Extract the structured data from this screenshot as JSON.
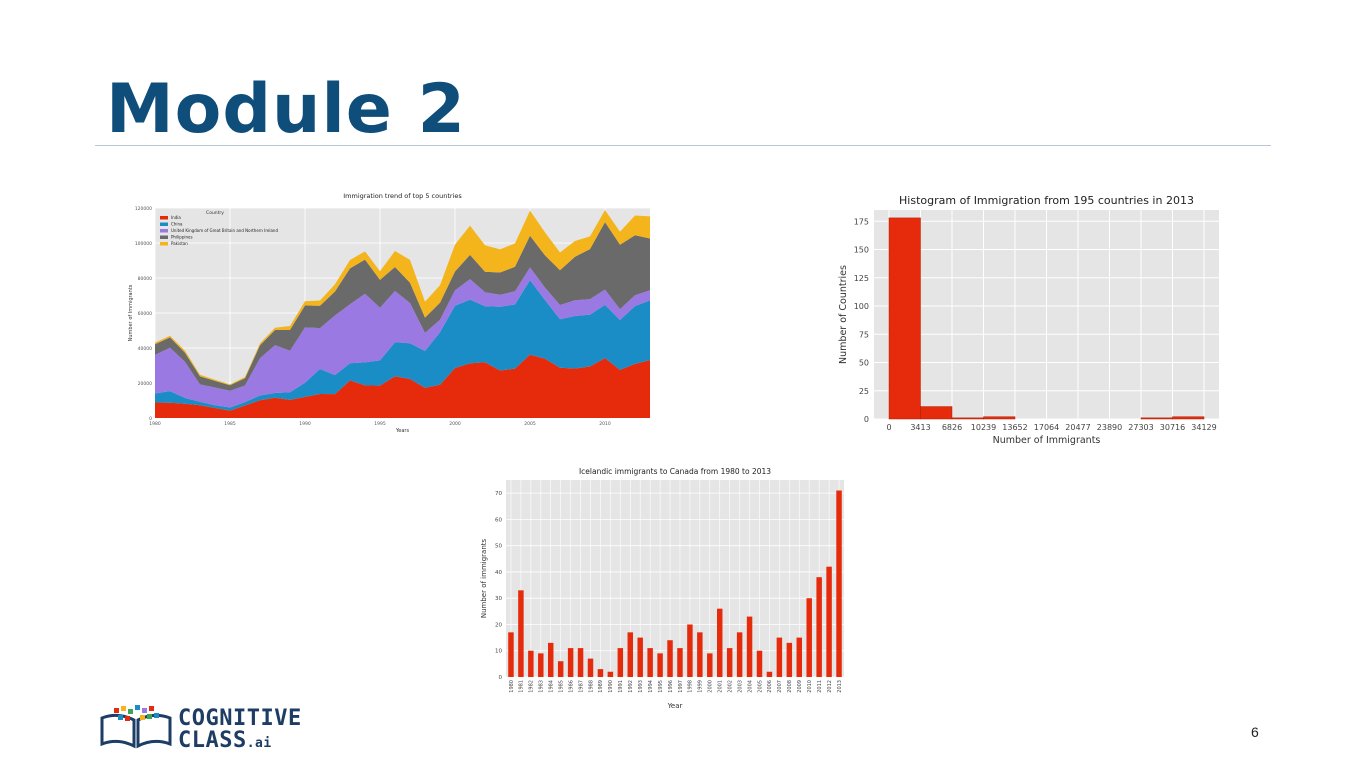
{
  "slide": {
    "title": "Module 2",
    "page_number": "6",
    "logo": {
      "line1": "COGNITIVE",
      "line2": "CLASS",
      "suffix": ".ai"
    }
  },
  "chart_data": [
    {
      "type": "area",
      "stacked": true,
      "title": "Immigration trend of top 5 countries",
      "xlabel": "Years",
      "ylabel": "Number of Immigrants",
      "legend_title": "Country",
      "legend_position": "top-left",
      "x": [
        1980,
        1981,
        1982,
        1983,
        1984,
        1985,
        1986,
        1987,
        1988,
        1989,
        1990,
        1991,
        1992,
        1993,
        1994,
        1995,
        1996,
        1997,
        1998,
        1999,
        2000,
        2001,
        2002,
        2003,
        2004,
        2005,
        2006,
        2007,
        2008,
        2009,
        2010,
        2011,
        2012,
        2013
      ],
      "xticks": [
        1980,
        1985,
        1990,
        1995,
        2000,
        2005,
        2010
      ],
      "xlim": [
        1980,
        2013
      ],
      "ylim": [
        0,
        120000
      ],
      "yticks": [
        0,
        20000,
        40000,
        60000,
        80000,
        100000,
        120000
      ],
      "grid": true,
      "series": [
        {
          "name": "India",
          "color": "#e52b0c",
          "values": [
            8880,
            8670,
            8147,
            7338,
            5704,
            4211,
            7150,
            10189,
            11522,
            10343,
            12041,
            13734,
            13673,
            21496,
            18620,
            18489,
            23859,
            22268,
            17241,
            18974,
            28572,
            31223,
            31889,
            27155,
            28235,
            36210,
            33848,
            28742,
            28261,
            29456,
            34235,
            27509,
            30933,
            33087
          ]
        },
        {
          "name": "China",
          "color": "#1a8cc6",
          "values": [
            5123,
            6682,
            3308,
            1863,
            1527,
            1816,
            1960,
            2643,
            2758,
            4323,
            8076,
            14255,
            10846,
            9817,
            13128,
            14398,
            19415,
            20475,
            21049,
            30069,
            35529,
            36434,
            31961,
            36439,
            36619,
            42584,
            33518,
            27642,
            30037,
            29622,
            30391,
            28502,
            33024,
            34129
          ]
        },
        {
          "name": "United Kingdom of Great Britain and Northern Ireland",
          "color": "#9a79e3",
          "values": [
            22045,
            24796,
            20620,
            10015,
            10170,
            9564,
            9470,
            21337,
            27359,
            23795,
            31668,
            23380,
            34123,
            33720,
            39231,
            30145,
            29322,
            22965,
            10367,
            7045,
            8840,
            11728,
            8046,
            6797,
            7533,
            7258,
            7140,
            8216,
            8979,
            8876,
            8724,
            6204,
            6195,
            5827
          ]
        },
        {
          "name": "Philippines",
          "color": "#6a6a6a",
          "values": [
            6051,
            5921,
            5249,
            4562,
            3801,
            3150,
            4166,
            7360,
            8639,
            11865,
            12509,
            12718,
            13670,
            20479,
            19532,
            15864,
            13692,
            11549,
            8735,
            9734,
            10763,
            13836,
            11707,
            12758,
            14004,
            18139,
            18400,
            19837,
            24887,
            28573,
            38617,
            36765,
            34315,
            29544
          ]
        },
        {
          "name": "Pakistan",
          "color": "#f3b41c",
          "values": [
            978,
            972,
            1201,
            900,
            668,
            514,
            691,
            1072,
            1334,
            2261,
            2470,
            3079,
            4071,
            4777,
            4666,
            4994,
            9125,
            13073,
            9068,
            9979,
            15400,
            16708,
            15110,
            13205,
            13399,
            14314,
            13127,
            10124,
            8994,
            7217,
            6811,
            7468,
            11227,
            12603
          ]
        }
      ]
    },
    {
      "type": "bar",
      "subtype": "histogram",
      "title": "Histogram of Immigration from 195 countries in 2013",
      "xlabel": "Number of Immigrants",
      "ylabel": "Number of Countries",
      "bin_edges": [
        0,
        3413,
        6826,
        10239,
        13652,
        17064,
        20477,
        23890,
        27303,
        30716,
        34129
      ],
      "xtick_labels": [
        "0",
        "3413",
        "6826",
        "10239",
        "13652",
        "17064",
        "20477",
        "23890",
        "27303",
        "30716",
        "34129"
      ],
      "values": [
        178,
        11,
        1,
        2,
        0,
        0,
        0,
        0,
        1,
        2
      ],
      "ylim": [
        0,
        185
      ],
      "yticks": [
        0,
        25,
        50,
        75,
        100,
        125,
        150,
        175
      ],
      "grid": true,
      "bar_color": "#e52b0c"
    },
    {
      "type": "bar",
      "title": "Icelandic immigrants to Canada from 1980 to 2013",
      "xlabel": "Year",
      "ylabel": "Number of immigrants",
      "categories": [
        "1980",
        "1981",
        "1982",
        "1983",
        "1984",
        "1985",
        "1986",
        "1987",
        "1988",
        "1989",
        "1990",
        "1991",
        "1992",
        "1993",
        "1994",
        "1995",
        "1996",
        "1997",
        "1998",
        "1999",
        "2000",
        "2001",
        "2002",
        "2003",
        "2004",
        "2005",
        "2006",
        "2007",
        "2008",
        "2009",
        "2010",
        "2011",
        "2012",
        "2013"
      ],
      "values": [
        17,
        33,
        10,
        9,
        13,
        6,
        11,
        11,
        7,
        3,
        2,
        11,
        17,
        15,
        11,
        9,
        14,
        11,
        20,
        17,
        9,
        26,
        11,
        17,
        23,
        10,
        2,
        15,
        13,
        15,
        30,
        38,
        42,
        71
      ],
      "ylim": [
        0,
        75
      ],
      "yticks": [
        0,
        10,
        20,
        30,
        40,
        50,
        60,
        70
      ],
      "grid": true,
      "bar_color": "#e52b0c"
    }
  ]
}
